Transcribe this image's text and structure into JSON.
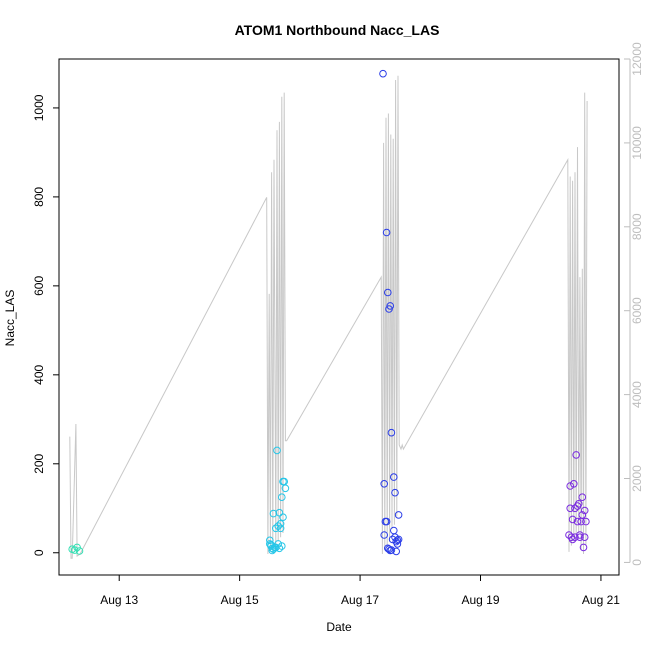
{
  "chart_data": {
    "type": "scatter",
    "title": "ATOM1 Northbound Nacc_LAS",
    "xlabel": "Date",
    "ylabel": "Nacc_LAS",
    "x_ticks": [
      "Aug 13",
      "Aug 15",
      "Aug 17",
      "Aug 19",
      "Aug 21"
    ],
    "x_tick_values": [
      13,
      15,
      17,
      19,
      21
    ],
    "x_range": [
      12.0,
      21.3
    ],
    "y_ticks": [
      0,
      200,
      400,
      600,
      800,
      1000
    ],
    "ylim": [
      -50,
      1110
    ],
    "y2_ticks": [
      0,
      2000,
      4000,
      6000,
      8000,
      10000,
      12000
    ],
    "y2lim": [
      -300,
      12000
    ],
    "line_color": "#c8c8c8",
    "secondary_series": {
      "x": [
        12.18,
        12.2,
        12.22,
        12.28,
        12.3,
        12.35,
        15.45,
        15.47,
        15.49,
        15.51,
        15.53,
        15.55,
        15.57,
        15.6,
        15.62,
        15.64,
        15.66,
        15.68,
        15.7,
        15.72,
        15.74,
        15.76,
        15.78,
        15.8,
        17.35,
        17.37,
        17.39,
        17.41,
        17.43,
        17.45,
        17.47,
        17.49,
        17.51,
        17.53,
        17.55,
        17.57,
        17.59,
        17.61,
        17.63,
        17.65,
        17.68,
        17.7,
        17.72,
        20.45,
        20.47,
        20.49,
        20.51,
        20.53,
        20.55,
        20.57,
        20.59,
        20.61,
        20.63,
        20.65,
        20.67,
        20.69,
        20.71,
        20.73,
        20.75,
        20.77
      ],
      "values": [
        3000,
        100,
        100,
        3300,
        150,
        200,
        8700,
        200,
        6400,
        300,
        9300,
        300,
        9600,
        300,
        10300,
        500,
        10500,
        600,
        11100,
        700,
        11200,
        2900,
        2900,
        2950,
        6800,
        200,
        10000,
        300,
        10600,
        400,
        10700,
        500,
        10200,
        800,
        10100,
        900,
        11500,
        1100,
        11600,
        2800,
        2700,
        2800,
        2700,
        9600,
        250,
        9200,
        400,
        9100,
        500,
        9300,
        600,
        9900,
        700,
        6800,
        300,
        7000,
        200,
        11200,
        400,
        11000
      ]
    },
    "series": [
      {
        "color": "#33e0b4",
        "x": [
          12.22,
          12.26,
          12.3,
          12.34
        ],
        "values": [
          8,
          6,
          12,
          4
        ]
      },
      {
        "color": "#26c6e8",
        "x": [
          15.5,
          15.52,
          15.54,
          15.56,
          15.58,
          15.6,
          15.62,
          15.64,
          15.66,
          15.68,
          15.7,
          15.72,
          15.74,
          15.76,
          15.52,
          15.56,
          15.6,
          15.64,
          15.68,
          15.72,
          15.5,
          15.54,
          15.58,
          15.66,
          15.7
        ],
        "values": [
          28,
          15,
          10,
          88,
          12,
          55,
          230,
          60,
          90,
          65,
          15,
          80,
          160,
          145,
          18,
          8,
          12,
          20,
          55,
          160,
          20,
          5,
          12,
          10,
          125
        ]
      },
      {
        "color": "#2a3de8",
        "x": [
          17.38,
          17.4,
          17.42,
          17.44,
          17.46,
          17.48,
          17.5,
          17.52,
          17.54,
          17.56,
          17.58,
          17.6,
          17.62,
          17.64,
          17.4,
          17.44,
          17.48,
          17.52,
          17.56,
          17.6,
          17.64,
          17.46,
          17.5,
          17.58,
          17.62
        ],
        "values": [
          1077,
          155,
          70,
          720,
          585,
          548,
          555,
          270,
          30,
          170,
          135,
          25,
          20,
          85,
          40,
          70,
          8,
          6,
          50,
          3,
          30,
          10,
          5,
          35,
          28
        ]
      },
      {
        "color": "#7a2be0",
        "x": [
          20.47,
          20.49,
          20.51,
          20.53,
          20.55,
          20.57,
          20.59,
          20.61,
          20.63,
          20.65,
          20.67,
          20.69,
          20.71,
          20.73,
          20.75,
          20.49,
          20.53,
          20.57,
          20.61,
          20.65,
          20.69,
          20.73
        ],
        "values": [
          40,
          150,
          35,
          75,
          155,
          100,
          220,
          105,
          110,
          35,
          70,
          125,
          12,
          95,
          70,
          100,
          30,
          35,
          70,
          40,
          85,
          35
        ]
      }
    ]
  }
}
